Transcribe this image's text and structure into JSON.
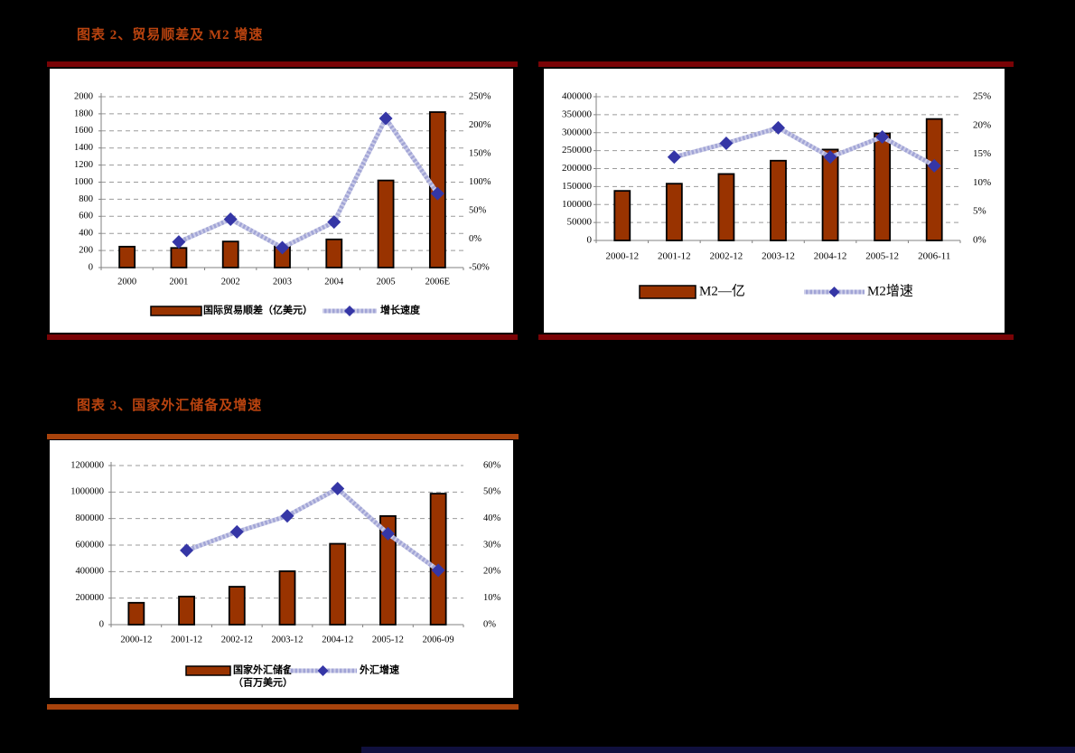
{
  "page": {
    "background": "#000000",
    "panel_background": "#ffffff",
    "title_color": "#B9430F",
    "rule_color_top_charts": "#7A0306",
    "rule_color_bottom_chart": "#A8430C",
    "footer_bar_color": "#10103E"
  },
  "styles": {
    "bar_fill": "#993300",
    "bar_stroke": "#000000",
    "line_color": "#A2A5D6",
    "marker_color": "#3536A6",
    "grid_color": "#9B9B9B",
    "axis_color": "#808080",
    "tick_label_color": "#000000"
  },
  "chart_data": [
    {
      "id": "trade-surplus-and-m2-growth",
      "type": "bar+line",
      "title": "图表 2、贸易顺差及 M2 增速",
      "categories": [
        "2000",
        "2001",
        "2002",
        "2003",
        "2004",
        "2005",
        "2006E"
      ],
      "series": [
        {
          "name": "国际贸易顺差（亿美元）",
          "type": "bar",
          "axis": "left",
          "values": [
            245,
            230,
            305,
            250,
            330,
            1020,
            1820
          ]
        },
        {
          "name": "增长速度",
          "type": "line",
          "axis": "right",
          "values": [
            null,
            -5,
            35,
            -15,
            30,
            212,
            80
          ]
        }
      ],
      "left_axis": {
        "min": 0,
        "max": 2000,
        "step": 200
      },
      "right_axis": {
        "min": -50,
        "max": 250,
        "step": 50,
        "suffix": "%"
      },
      "grid": true,
      "legend_position": "bottom"
    },
    {
      "id": "m2-and-m2-growth",
      "type": "bar+line",
      "title": "",
      "categories": [
        "2000-12",
        "2001-12",
        "2002-12",
        "2003-12",
        "2004-12",
        "2005-12",
        "2006-11"
      ],
      "series": [
        {
          "name": "M2—亿",
          "type": "bar",
          "axis": "left",
          "values": [
            138000,
            158000,
            185000,
            222000,
            253000,
            298000,
            338000
          ]
        },
        {
          "name": "M2增速",
          "type": "line",
          "axis": "right",
          "values": [
            null,
            14.5,
            16.9,
            19.6,
            14.5,
            18,
            13
          ]
        }
      ],
      "left_axis": {
        "min": 0,
        "max": 400000,
        "step": 50000
      },
      "right_axis": {
        "min": 0,
        "max": 25,
        "step": 5,
        "suffix": "%"
      },
      "grid": true,
      "legend_position": "bottom"
    },
    {
      "id": "fx-reserves-and-growth",
      "type": "bar+line",
      "title": "图表 3、国家外汇储备及增速",
      "categories": [
        "2000-12",
        "2001-12",
        "2002-12",
        "2003-12",
        "2004-12",
        "2005-12",
        "2006-09"
      ],
      "series": [
        {
          "name": "国家外汇储备（百万美元）",
          "name_lines": [
            "国家外汇储备",
            "（百万美元）"
          ],
          "type": "bar",
          "axis": "left",
          "values": [
            165000,
            212000,
            286000,
            403000,
            610000,
            819000,
            988000
          ]
        },
        {
          "name": "外汇增速",
          "type": "line",
          "axis": "right",
          "values": [
            null,
            28,
            35,
            41,
            51.3,
            34.3,
            20.5
          ]
        }
      ],
      "left_axis": {
        "min": 0,
        "max": 1200000,
        "step": 200000
      },
      "right_axis": {
        "min": 0,
        "max": 60,
        "step": 10,
        "suffix": "%"
      },
      "grid": true,
      "legend_position": "bottom"
    }
  ]
}
